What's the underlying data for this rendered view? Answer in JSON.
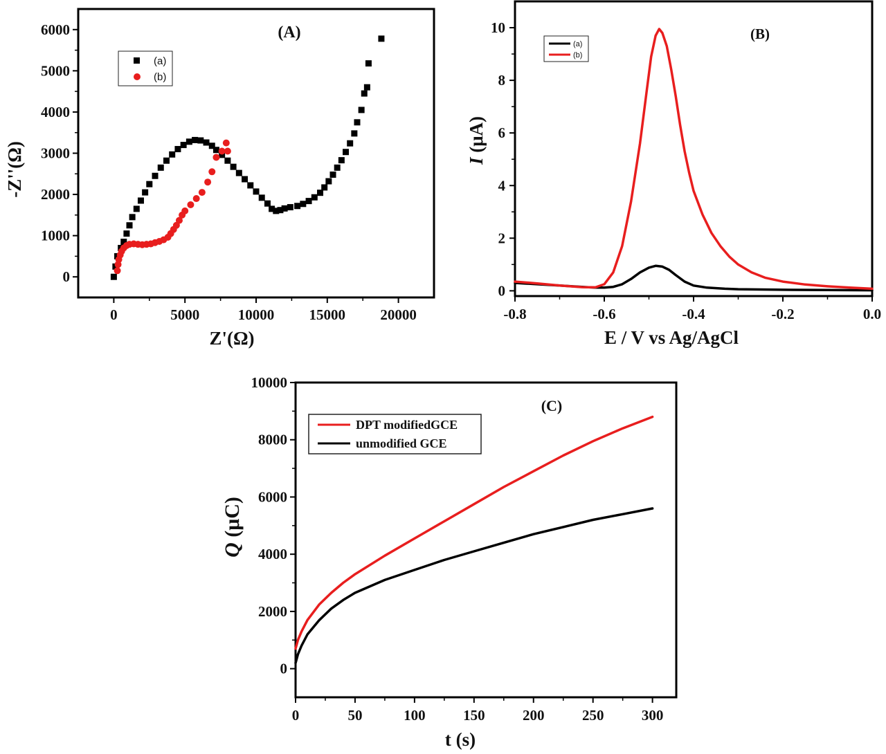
{
  "chart_data": [
    {
      "panel": "A",
      "type": "scatter",
      "title": "(A)",
      "xlabel": "Z'(Ω)",
      "ylabel": "-Z''(Ω)",
      "xlim": [
        -2500,
        22500
      ],
      "ylim": [
        -500,
        6500
      ],
      "xticks": [
        0,
        5000,
        10000,
        15000,
        20000
      ],
      "yticks": [
        0,
        1000,
        2000,
        3000,
        4000,
        5000,
        6000
      ],
      "x_tick_labels": [
        "0",
        "5000",
        "10000",
        "15000",
        "20000"
      ],
      "y_tick_labels": [
        "0",
        "1000",
        "2000",
        "3000",
        "4000",
        "5000",
        "6000"
      ],
      "legend": [
        "(a)",
        "(b)"
      ],
      "series": [
        {
          "name": "(a)",
          "marker": "square",
          "color": "#000000",
          "points": [
            [
              0,
              0
            ],
            [
              120,
              250
            ],
            [
              250,
              500
            ],
            [
              500,
              700
            ],
            [
              700,
              850
            ],
            [
              900,
              1050
            ],
            [
              1100,
              1250
            ],
            [
              1300,
              1450
            ],
            [
              1600,
              1650
            ],
            [
              1900,
              1850
            ],
            [
              2200,
              2050
            ],
            [
              2500,
              2250
            ],
            [
              2900,
              2450
            ],
            [
              3300,
              2650
            ],
            [
              3700,
              2820
            ],
            [
              4100,
              2970
            ],
            [
              4500,
              3100
            ],
            [
              4900,
              3200
            ],
            [
              5300,
              3280
            ],
            [
              5700,
              3320
            ],
            [
              6100,
              3310
            ],
            [
              6500,
              3260
            ],
            [
              6900,
              3180
            ],
            [
              7200,
              3080
            ],
            [
              7600,
              2960
            ],
            [
              8000,
              2820
            ],
            [
              8400,
              2670
            ],
            [
              8800,
              2520
            ],
            [
              9200,
              2370
            ],
            [
              9600,
              2220
            ],
            [
              10000,
              2070
            ],
            [
              10400,
              1920
            ],
            [
              10800,
              1780
            ],
            [
              11100,
              1650
            ],
            [
              11400,
              1600
            ],
            [
              11700,
              1620
            ],
            [
              12000,
              1660
            ],
            [
              12400,
              1690
            ],
            [
              12900,
              1720
            ],
            [
              13300,
              1770
            ],
            [
              13700,
              1840
            ],
            [
              14100,
              1930
            ],
            [
              14500,
              2040
            ],
            [
              14800,
              2170
            ],
            [
              15100,
              2320
            ],
            [
              15400,
              2480
            ],
            [
              15700,
              2650
            ],
            [
              16000,
              2830
            ],
            [
              16300,
              3030
            ],
            [
              16600,
              3240
            ],
            [
              16900,
              3480
            ],
            [
              17100,
              3750
            ],
            [
              17400,
              4050
            ],
            [
              17600,
              4450
            ],
            [
              17800,
              4600
            ],
            [
              17900,
              5180
            ],
            [
              18800,
              5780
            ]
          ]
        },
        {
          "name": "(b)",
          "marker": "circle",
          "color": "#e81e1e",
          "points": [
            [
              250,
              150
            ],
            [
              300,
              300
            ],
            [
              350,
              420
            ],
            [
              450,
              530
            ],
            [
              550,
              620
            ],
            [
              700,
              700
            ],
            [
              900,
              760
            ],
            [
              1100,
              790
            ],
            [
              1400,
              800
            ],
            [
              1700,
              790
            ],
            [
              2000,
              780
            ],
            [
              2300,
              790
            ],
            [
              2600,
              800
            ],
            [
              2900,
              830
            ],
            [
              3200,
              860
            ],
            [
              3500,
              900
            ],
            [
              3800,
              960
            ],
            [
              4000,
              1050
            ],
            [
              4200,
              1150
            ],
            [
              4400,
              1250
            ],
            [
              4600,
              1370
            ],
            [
              4800,
              1500
            ],
            [
              5000,
              1600
            ],
            [
              5400,
              1750
            ],
            [
              5800,
              1900
            ],
            [
              6200,
              2050
            ],
            [
              6600,
              2300
            ],
            [
              6900,
              2550
            ],
            [
              7200,
              2900
            ],
            [
              7600,
              3050
            ],
            [
              7900,
              3250
            ],
            [
              8000,
              3050
            ]
          ]
        }
      ]
    },
    {
      "panel": "B",
      "type": "line",
      "title": "(B)",
      "xlabel": "E / V vs Ag/AgCl",
      "ylabel": "I (μA)",
      "ylabel_italic": "I",
      "ylabel_rest": " (μA)",
      "xlim": [
        -0.8,
        0.0
      ],
      "ylim": [
        -0.2,
        11
      ],
      "xticks": [
        -0.8,
        -0.6,
        -0.4,
        -0.2,
        0.0
      ],
      "yticks": [
        0,
        2,
        4,
        6,
        8,
        10
      ],
      "x_tick_labels": [
        "-0.8",
        "-0.6",
        "-0.4",
        "-0.2",
        "0.0"
      ],
      "y_tick_labels": [
        "0",
        "2",
        "4",
        "6",
        "8",
        "10"
      ],
      "legend": [
        "(a)",
        "(b)"
      ],
      "series": [
        {
          "name": "(a)",
          "color": "#000000",
          "points": [
            [
              -0.8,
              0.3
            ],
            [
              -0.75,
              0.25
            ],
            [
              -0.7,
              0.2
            ],
            [
              -0.65,
              0.15
            ],
            [
              -0.62,
              0.12
            ],
            [
              -0.6,
              0.12
            ],
            [
              -0.58,
              0.15
            ],
            [
              -0.56,
              0.25
            ],
            [
              -0.54,
              0.45
            ],
            [
              -0.52,
              0.7
            ],
            [
              -0.5,
              0.88
            ],
            [
              -0.485,
              0.95
            ],
            [
              -0.47,
              0.92
            ],
            [
              -0.455,
              0.8
            ],
            [
              -0.44,
              0.6
            ],
            [
              -0.42,
              0.35
            ],
            [
              -0.4,
              0.2
            ],
            [
              -0.37,
              0.12
            ],
            [
              -0.33,
              0.08
            ],
            [
              -0.3,
              0.06
            ],
            [
              -0.2,
              0.04
            ],
            [
              -0.1,
              0.03
            ],
            [
              0.0,
              0.02
            ]
          ]
        },
        {
          "name": "(b)",
          "color": "#e81e1e",
          "points": [
            [
              -0.8,
              0.35
            ],
            [
              -0.75,
              0.28
            ],
            [
              -0.7,
              0.2
            ],
            [
              -0.65,
              0.14
            ],
            [
              -0.62,
              0.13
            ],
            [
              -0.6,
              0.25
            ],
            [
              -0.58,
              0.7
            ],
            [
              -0.56,
              1.7
            ],
            [
              -0.54,
              3.4
            ],
            [
              -0.52,
              5.6
            ],
            [
              -0.505,
              7.6
            ],
            [
              -0.495,
              8.9
            ],
            [
              -0.485,
              9.7
            ],
            [
              -0.477,
              9.95
            ],
            [
              -0.47,
              9.8
            ],
            [
              -0.46,
              9.3
            ],
            [
              -0.45,
              8.4
            ],
            [
              -0.44,
              7.4
            ],
            [
              -0.43,
              6.3
            ],
            [
              -0.42,
              5.3
            ],
            [
              -0.41,
              4.5
            ],
            [
              -0.4,
              3.8
            ],
            [
              -0.38,
              2.9
            ],
            [
              -0.36,
              2.2
            ],
            [
              -0.34,
              1.7
            ],
            [
              -0.32,
              1.3
            ],
            [
              -0.3,
              1.0
            ],
            [
              -0.27,
              0.7
            ],
            [
              -0.24,
              0.5
            ],
            [
              -0.2,
              0.35
            ],
            [
              -0.15,
              0.24
            ],
            [
              -0.1,
              0.17
            ],
            [
              -0.05,
              0.12
            ],
            [
              0.0,
              0.08
            ]
          ]
        }
      ]
    },
    {
      "panel": "C",
      "type": "line",
      "title": "(C)",
      "xlabel": "t (s)",
      "ylabel": "Q (μC)",
      "ylabel_italic": "Q",
      "ylabel_rest": " (μC)",
      "xlim": [
        0,
        320
      ],
      "ylim": [
        -1000,
        10000
      ],
      "xticks": [
        0,
        50,
        100,
        150,
        200,
        250,
        300
      ],
      "yticks": [
        0,
        2000,
        4000,
        6000,
        8000,
        10000
      ],
      "x_tick_labels": [
        "0",
        "50",
        "100",
        "150",
        "200",
        "250",
        "300"
      ],
      "y_tick_labels": [
        "0",
        "2000",
        "4000",
        "6000",
        "8000",
        "10000"
      ],
      "legend": [
        "DPT modifiedGCE",
        "unmodified GCE"
      ],
      "series": [
        {
          "name": "DPT modifiedGCE",
          "color": "#e81e1e",
          "points": [
            [
              0,
              700
            ],
            [
              2,
              1000
            ],
            [
              5,
              1300
            ],
            [
              10,
              1700
            ],
            [
              20,
              2250
            ],
            [
              30,
              2650
            ],
            [
              40,
              3000
            ],
            [
              50,
              3300
            ],
            [
              75,
              3950
            ],
            [
              100,
              4550
            ],
            [
              125,
              5150
            ],
            [
              150,
              5750
            ],
            [
              175,
              6350
            ],
            [
              200,
              6900
            ],
            [
              225,
              7450
            ],
            [
              250,
              7950
            ],
            [
              275,
              8400
            ],
            [
              300,
              8800
            ]
          ]
        },
        {
          "name": "unmodified GCE",
          "color": "#000000",
          "points": [
            [
              0,
              200
            ],
            [
              2,
              500
            ],
            [
              5,
              800
            ],
            [
              10,
              1200
            ],
            [
              20,
              1700
            ],
            [
              30,
              2100
            ],
            [
              40,
              2400
            ],
            [
              50,
              2650
            ],
            [
              75,
              3100
            ],
            [
              100,
              3450
            ],
            [
              125,
              3800
            ],
            [
              150,
              4100
            ],
            [
              175,
              4400
            ],
            [
              200,
              4700
            ],
            [
              225,
              4950
            ],
            [
              250,
              5200
            ],
            [
              275,
              5400
            ],
            [
              300,
              5600
            ]
          ]
        }
      ]
    }
  ]
}
